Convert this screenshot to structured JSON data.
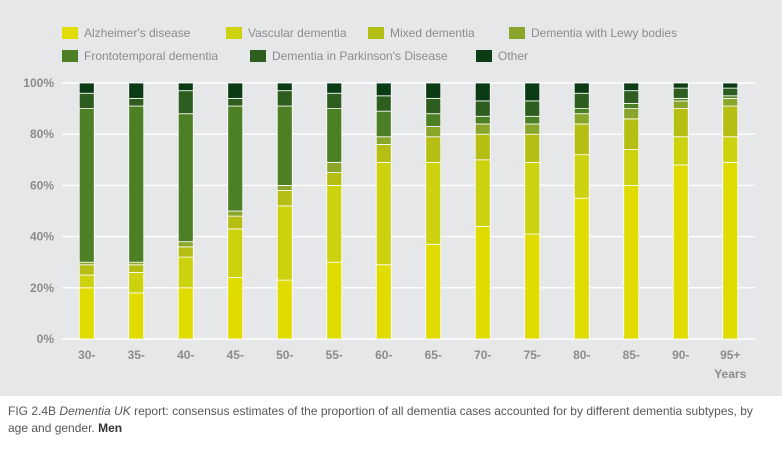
{
  "chart_data": {
    "type": "bar",
    "stacked": true,
    "categories": [
      "30-",
      "35-",
      "40-",
      "45-",
      "50-",
      "55-",
      "60-",
      "65-",
      "70-",
      "75-",
      "80-",
      "85-",
      "90-",
      "95+"
    ],
    "xlabel": "Years",
    "ylabel": "",
    "ylim": [
      0,
      100
    ],
    "yticks": [
      "0%",
      "20%",
      "40%",
      "60%",
      "80%",
      "100%"
    ],
    "grid": true,
    "legend_position": "top",
    "series": [
      {
        "name": "Alzheimer's disease",
        "color": "#e0dc00",
        "values": [
          20,
          18,
          20,
          24,
          23,
          30,
          29,
          37,
          44,
          41,
          55,
          60,
          68,
          69
        ]
      },
      {
        "name": "Vascular dementia",
        "color": "#cdd20f",
        "values": [
          5,
          8,
          12,
          19,
          29,
          30,
          40,
          32,
          26,
          28,
          17,
          14,
          11,
          10
        ]
      },
      {
        "name": "Mixed dementia",
        "color": "#b5be12",
        "values": [
          4,
          3,
          4,
          5,
          6,
          5,
          7,
          10,
          10,
          11,
          12,
          12,
          11,
          12
        ]
      },
      {
        "name": "Dementia with Lewy bodies",
        "color": "#8aa62a",
        "values": [
          1,
          1,
          2,
          2,
          2,
          4,
          3,
          4,
          4,
          4,
          4,
          4,
          3,
          3
        ]
      },
      {
        "name": "Frontotemporal dementia",
        "color": "#4d7f25",
        "values": [
          60,
          61,
          50,
          41,
          31,
          21,
          10,
          5,
          3,
          3,
          2,
          2,
          1,
          1
        ]
      },
      {
        "name": "Dementia in Parkinson's Disease",
        "color": "#2e5e1f",
        "values": [
          6,
          3,
          9,
          3,
          6,
          6,
          6,
          6,
          6,
          6,
          6,
          5,
          4,
          3
        ]
      },
      {
        "name": "Other",
        "color": "#0b3b14",
        "values": [
          4,
          6,
          3,
          6,
          3,
          4,
          5,
          6,
          7,
          7,
          4,
          3,
          2,
          2
        ]
      }
    ]
  },
  "caption": {
    "fig_label": "FIG 2.4B",
    "title_italic": "Dementia UK",
    "text": " report: consensus estimates of the proportion of all dementia cases accounted for by different dementia subtypes, by age and gender. ",
    "emphasis": "Men"
  }
}
